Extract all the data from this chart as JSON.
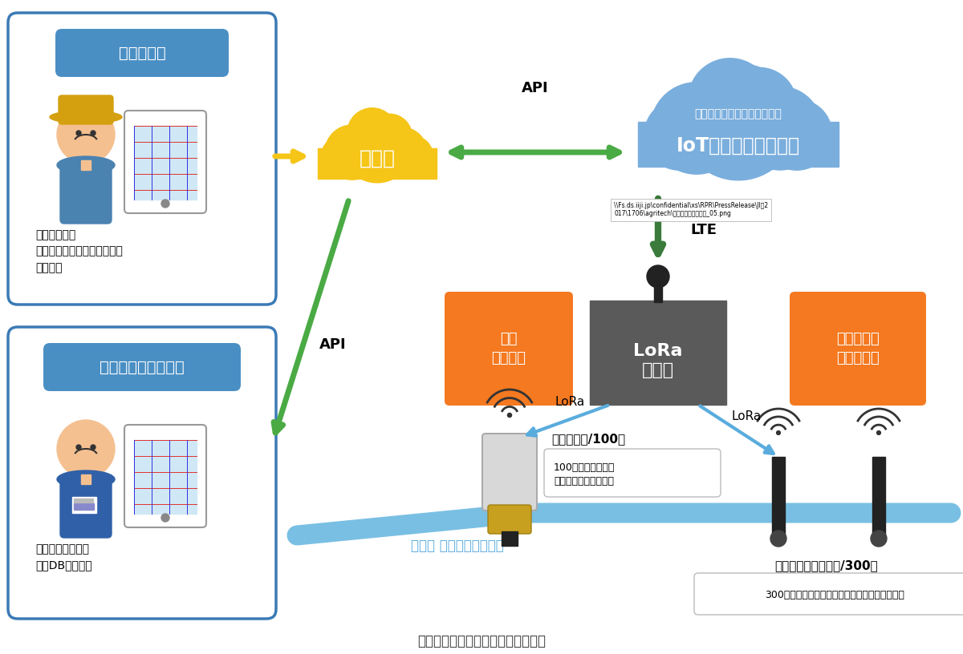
{
  "title": "図　実証実験で使用する機器の構成",
  "bg_color": "#ffffff",
  "box1_label": "農業経営体",
  "box1_text": "水位水温変化\n状態監視・異常検知給水弁の\n開閉指示",
  "box2_label": "土地改良区・自治体",
  "box2_text": "水管理システム・\n施設DBとの連携",
  "app_label": "アプリ",
  "iot_label1": "データ蓄積・連携・機器制御",
  "iot_label2": "IoTプラットフォーム",
  "lora_label": "LoRa\n基地局",
  "lte_label": "LTE",
  "api_label1": "API",
  "api_label2": "API",
  "remote_label": "遠隔\n開閉制御",
  "sensor_data_label": "水位・水温\nデータ収集",
  "lora_label2": "LoRa",
  "lora_label3": "LoRa",
  "valve_label": "自動給水弁/100台",
  "valve_desc": "100カ所の給水弁を\n自動制御して負担軽減",
  "sensor_label": "水位・水温センサー/300台",
  "sensor_desc": "300機のセンサーにより水田の状況を面的に把握",
  "pipeline_label": "重力式 低圧パイプライン",
  "path_text": "\\\\Fs.ds.iiji.jp\\confidential\\xs\\RPR\\PressRelease\\JIハ2\n017\\1706\\agritech\\プレスリリース用図_05.png"
}
